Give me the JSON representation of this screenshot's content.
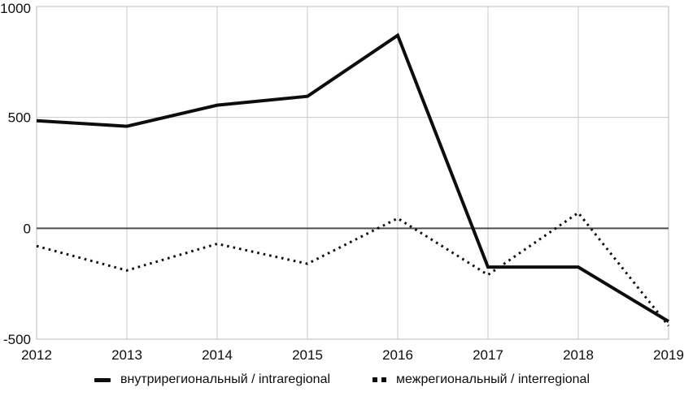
{
  "chart_data": {
    "type": "line",
    "x": [
      2012,
      2013,
      2014,
      2015,
      2016,
      2017,
      2018,
      2019
    ],
    "series": [
      {
        "name": "внутрирегиональный / intraregional",
        "style": "solid",
        "values": [
          485,
          460,
          555,
          595,
          870,
          -175,
          -175,
          -420
        ]
      },
      {
        "name": "межрегиональный / interregional",
        "style": "dotted",
        "values": [
          -80,
          -190,
          -70,
          -160,
          45,
          -210,
          70,
          -440
        ]
      }
    ],
    "ylim": [
      -500,
      1000
    ],
    "yticks": [
      -500,
      0,
      500,
      1000
    ],
    "xlabel": "",
    "ylabel": "",
    "title": "",
    "grid": true,
    "zero_line": true,
    "legend_position": "bottom"
  },
  "colors": {
    "series": "#0d0d0d",
    "grid": "#c9c9c9",
    "zero_line": "#4d4d4d",
    "text": "#0d0d0d",
    "background": "#ffffff"
  },
  "legend": {
    "items": [
      {
        "label": "внутрирегиональный / intraregional"
      },
      {
        "label": "межрегиональный / interregional"
      }
    ]
  }
}
